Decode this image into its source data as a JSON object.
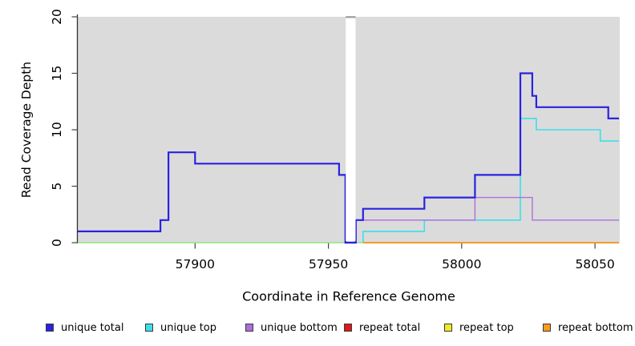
{
  "chart_data": {
    "type": "line",
    "subtype": "step-coverage-plot",
    "title": "",
    "xlabel": "Coordinate in Reference Genome",
    "ylabel": "Read Coverage Depth",
    "xlim": [
      57856,
      58059
    ],
    "ylim": [
      0,
      20
    ],
    "x_ticks": [
      57900,
      57950,
      58000,
      58050
    ],
    "x_tick_labels": [
      "57900",
      "57950",
      "58000",
      "58050"
    ],
    "y_ticks": [
      0,
      5,
      10,
      15,
      20
    ],
    "y_tick_labels": [
      "0",
      "5",
      "10",
      "15",
      "20"
    ],
    "grid": "off",
    "plot_background": "#DBDBDB",
    "gap_region": {
      "x_start": 57956.5,
      "x_end": 57960.2,
      "fill": "#FFFFFF",
      "note": "white no-data gap column"
    },
    "legend_position": "bottom",
    "series": [
      {
        "name": "unique total",
        "color": "#2A22E0",
        "end_x": 58059,
        "steps": [
          [
            57856,
            1
          ],
          [
            57887,
            2
          ],
          [
            57890,
            8
          ],
          [
            57900,
            7
          ],
          [
            57954,
            6
          ],
          [
            57956.4,
            0
          ],
          [
            57960.3,
            2
          ],
          [
            57963,
            3
          ],
          [
            57986,
            4
          ],
          [
            58005,
            6
          ],
          [
            58022,
            15
          ],
          [
            58026.5,
            13
          ],
          [
            58028,
            12
          ],
          [
            58055,
            11
          ]
        ]
      },
      {
        "name": "unique top",
        "color": "#3BDFEC",
        "end_x": 58059,
        "steps": [
          [
            57856,
            0
          ],
          [
            57963,
            1
          ],
          [
            57986,
            2
          ],
          [
            58022,
            11
          ],
          [
            58028,
            10
          ],
          [
            58052,
            9
          ]
        ]
      },
      {
        "name": "unique bottom",
        "color": "#AE6EDC",
        "end_x": 58059,
        "steps": [
          [
            57960.3,
            2
          ],
          [
            58005,
            4
          ],
          [
            58026.5,
            2
          ]
        ]
      },
      {
        "name": "repeat total",
        "color": "#E01818",
        "end_x": 58059,
        "steps": [
          [
            57963,
            0
          ]
        ]
      },
      {
        "name": "repeat top",
        "color": "#F0EB20",
        "end_x": 58059,
        "steps": [
          [
            57856,
            0
          ]
        ]
      },
      {
        "name": "repeat bottom",
        "color": "#F79C1E",
        "end_x": 58059,
        "steps": [
          [
            57963,
            0
          ]
        ]
      }
    ]
  }
}
